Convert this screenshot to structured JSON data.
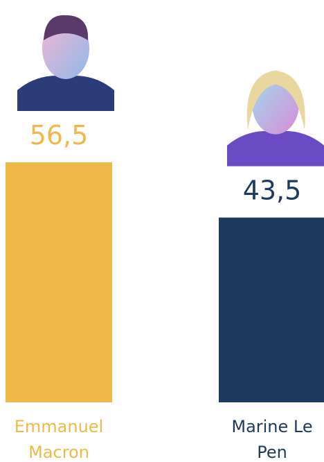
{
  "chart_data": {
    "type": "bar",
    "categories": [
      "Emmanuel Macron",
      "Marine Le Pen"
    ],
    "values": [
      56.5,
      43.5
    ],
    "value_labels": [
      "56,5",
      "43,5"
    ],
    "colors": [
      "#efb94a",
      "#1e3a5f"
    ]
  }
}
